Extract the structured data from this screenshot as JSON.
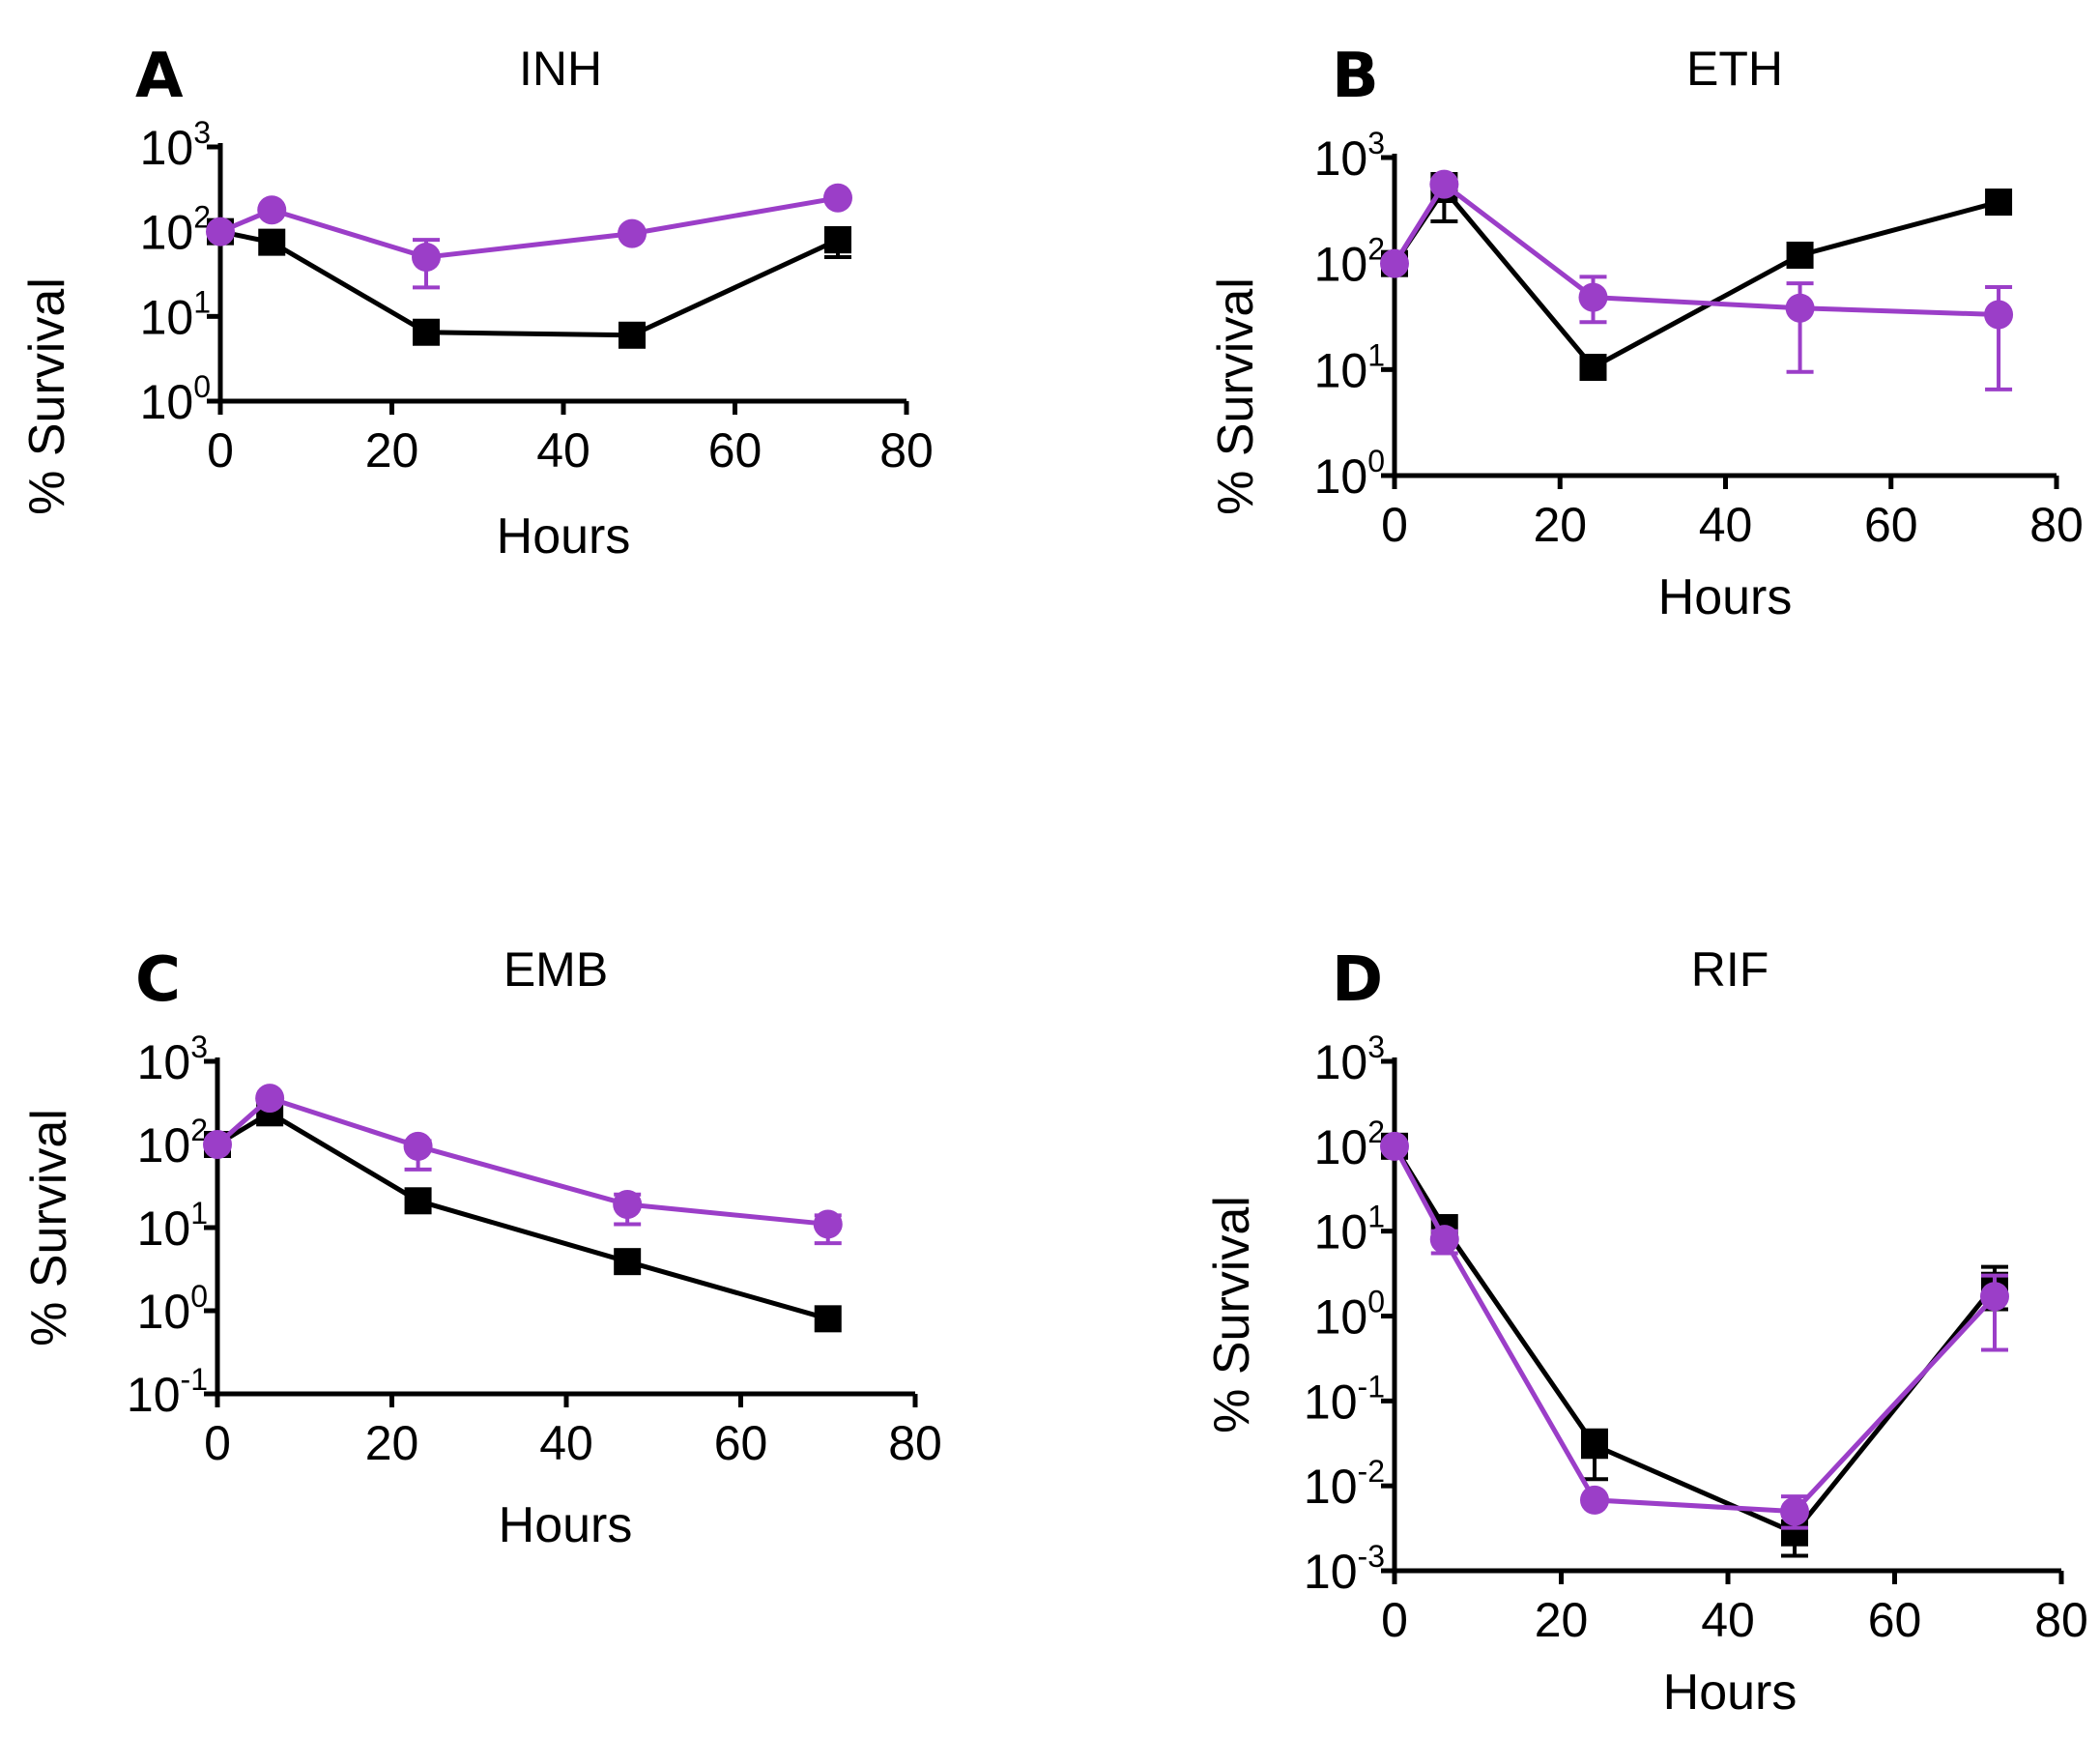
{
  "colors": {
    "series_a": "#000000",
    "series_b": "#9b3ec8"
  },
  "chart_data": [
    {
      "panel": "A",
      "title": "INH",
      "type": "line",
      "yscale": "log",
      "xlabel": "Hours",
      "ylabel": "% Survival",
      "xlim": [
        0,
        80
      ],
      "xticks": [
        "0",
        "20",
        "40",
        "60",
        "80"
      ],
      "ylim": [
        1,
        1000
      ],
      "yticks": [
        {
          "base": "10",
          "exp": "0"
        },
        {
          "base": "10",
          "exp": "1"
        },
        {
          "base": "10",
          "exp": "2"
        },
        {
          "base": "10",
          "exp": "3"
        }
      ],
      "series": [
        {
          "name": "black-squares",
          "marker": "square",
          "color": "#000000",
          "x": [
            0,
            6,
            24,
            48,
            72
          ],
          "y": [
            100,
            75,
            6.5,
            6.0,
            80
          ],
          "err": [
            null,
            null,
            null,
            null,
            [
              50,
              110
            ]
          ]
        },
        {
          "name": "purple-circles",
          "marker": "circle",
          "color": "#9b3ec8",
          "x": [
            0,
            6,
            24,
            48,
            72
          ],
          "y": [
            100,
            180,
            50,
            95,
            250
          ],
          "err": [
            null,
            null,
            [
              22,
              80
            ],
            null,
            null
          ]
        }
      ]
    },
    {
      "panel": "B",
      "title": "ETH",
      "type": "line",
      "yscale": "log",
      "xlabel": "Hours",
      "ylabel": "% Survival",
      "xlim": [
        0,
        80
      ],
      "xticks": [
        "0",
        "20",
        "40",
        "60",
        "80"
      ],
      "ylim": [
        1,
        1000
      ],
      "yticks": [
        {
          "base": "10",
          "exp": "0"
        },
        {
          "base": "10",
          "exp": "1"
        },
        {
          "base": "10",
          "exp": "2"
        },
        {
          "base": "10",
          "exp": "3"
        }
      ],
      "series": [
        {
          "name": "black-squares",
          "marker": "square",
          "color": "#000000",
          "x": [
            0,
            6,
            24,
            49,
            73
          ],
          "y": [
            100,
            500,
            10.5,
            120,
            380
          ],
          "err": [
            null,
            [
              250,
              700
            ],
            null,
            null,
            null
          ]
        },
        {
          "name": "purple-circles",
          "marker": "circle",
          "color": "#9b3ec8",
          "x": [
            0,
            6,
            24,
            49,
            73
          ],
          "y": [
            100,
            560,
            48,
            38,
            33
          ],
          "err": [
            null,
            null,
            [
              28,
              75
            ],
            [
              9.5,
              65
            ],
            [
              6.5,
              60
            ]
          ]
        }
      ]
    },
    {
      "panel": "C",
      "title": "EMB",
      "type": "line",
      "yscale": "log",
      "xlabel": "Hours",
      "ylabel": "% Survival",
      "xlim": [
        0,
        80
      ],
      "xticks": [
        "0",
        "20",
        "40",
        "60",
        "80"
      ],
      "ylim": [
        0.1,
        1000
      ],
      "yticks": [
        {
          "base": "10",
          "exp": "-1"
        },
        {
          "base": "10",
          "exp": "0"
        },
        {
          "base": "10",
          "exp": "1"
        },
        {
          "base": "10",
          "exp": "2"
        },
        {
          "base": "10",
          "exp": "3"
        }
      ],
      "series": [
        {
          "name": "black-squares",
          "marker": "square",
          "color": "#000000",
          "x": [
            0,
            6,
            23,
            47,
            70
          ],
          "y": [
            100,
            240,
            21,
            3.9,
            0.8
          ],
          "err": [
            null,
            null,
            null,
            null,
            null
          ]
        },
        {
          "name": "purple-circles",
          "marker": "circle",
          "color": "#9b3ec8",
          "x": [
            0,
            6,
            23,
            47,
            70
          ],
          "y": [
            100,
            360,
            95,
            19,
            11
          ],
          "err": [
            null,
            null,
            [
              50,
              110
            ],
            [
              11,
              25
            ],
            [
              6.5,
              14
            ]
          ]
        }
      ]
    },
    {
      "panel": "D",
      "title": "RIF",
      "type": "line",
      "yscale": "log",
      "xlabel": "Hours",
      "ylabel": "% Survival",
      "xlim": [
        0,
        80
      ],
      "xticks": [
        "0",
        "20",
        "40",
        "60",
        "80"
      ],
      "ylim": [
        0.001,
        1000
      ],
      "yticks": [
        {
          "base": "10",
          "exp": "-3"
        },
        {
          "base": "10",
          "exp": "-2"
        },
        {
          "base": "10",
          "exp": "-1"
        },
        {
          "base": "10",
          "exp": "0"
        },
        {
          "base": "10",
          "exp": "1"
        },
        {
          "base": "10",
          "exp": "2"
        },
        {
          "base": "10",
          "exp": "3"
        }
      ],
      "series": [
        {
          "name": "black-squares",
          "marker": "square",
          "color": "#000000",
          "x": [
            0,
            6,
            24,
            48,
            72
          ],
          "y": [
            100,
            11,
            0.03,
            0.0028,
            2.3
          ],
          "err": [
            null,
            null,
            [
              0.012,
              0.045
            ],
            [
              0.0015,
              0.0045
            ],
            [
              1.2,
              3.8
            ]
          ]
        },
        {
          "name": "purple-circles",
          "marker": "circle",
          "color": "#9b3ec8",
          "x": [
            0,
            6,
            24,
            48,
            72
          ],
          "y": [
            100,
            8,
            0.0068,
            0.005,
            1.7
          ],
          "err": [
            null,
            [
              5.5,
              10
            ],
            null,
            [
              0.0032,
              0.0075
            ],
            [
              0.4,
              3
            ]
          ]
        }
      ]
    }
  ]
}
